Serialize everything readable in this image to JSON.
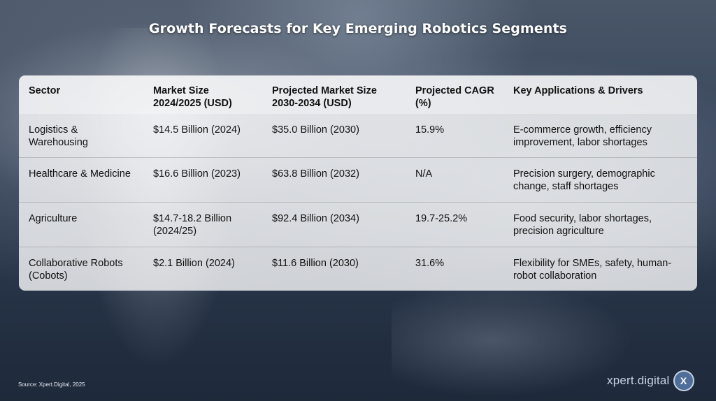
{
  "title": "Growth Forecasts for Key Emerging Robotics Segments",
  "table": {
    "headers": [
      "Sector",
      "Market Size 2024/2025 (USD)",
      "Projected Market Size 2030-2034 (USD)",
      "Projected CAGR (%)",
      "Key Applications & Drivers"
    ],
    "rows": [
      [
        "Logistics & Warehousing",
        "$14.5 Billion (2024)",
        "$35.0 Billion (2030)",
        "15.9%",
        "E-commerce growth, efficiency improvement, labor shortages"
      ],
      [
        "Healthcare & Medicine",
        "$16.6 Billion (2023)",
        "$63.8 Billion (2032)",
        "N/A",
        "Precision surgery, demographic change, staff shortages"
      ],
      [
        "Agriculture",
        "$14.7-18.2 Billion (2024/25)",
        "$92.4 Billion (2034)",
        "19.7-25.2%",
        "Food security, labor shortages, precision agriculture"
      ],
      [
        "Collaborative Robots (Cobots)",
        "$2.1 Billion (2024)",
        "$11.6 Billion (2030)",
        "31.6%",
        "Flexibility for SMEs, safety, human-robot collaboration"
      ]
    ]
  },
  "source": "Source: Xpert.Digital, 2025",
  "logo": {
    "text": "xpert.digital",
    "badge": "X"
  },
  "colors": {
    "background": "#2d3a4b",
    "logo_badge": "#4f6f9a"
  }
}
